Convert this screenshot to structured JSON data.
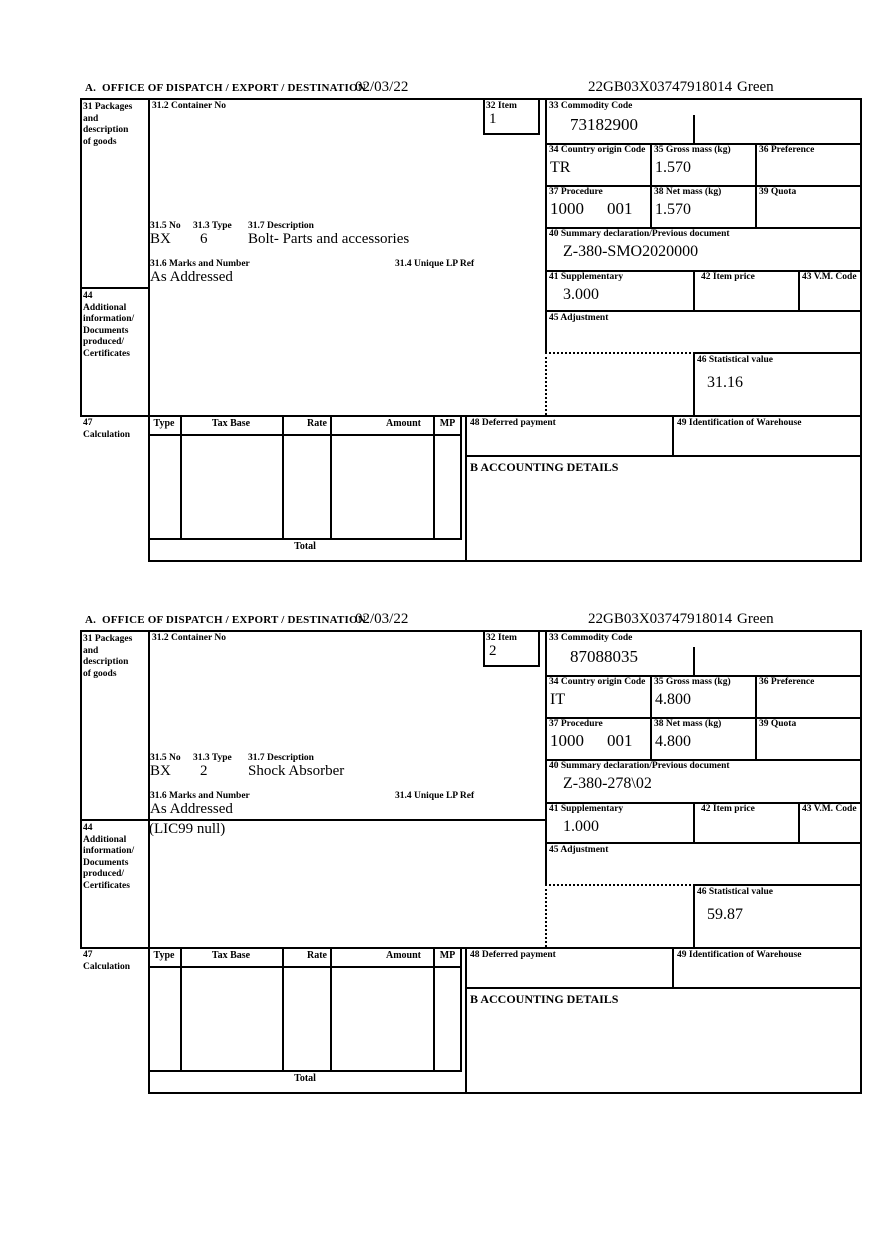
{
  "header": {
    "date": "02/03/22",
    "reference": "22GB03X03747918014",
    "routing": "Green"
  },
  "labels": {
    "section_a": "A.  OFFICE OF DISPATCH / EXPORT / DESTINATION",
    "box31": "31 Packages\nand\ndescription\nof goods",
    "box31_2": "31.2 Container No",
    "box32": "32 Item",
    "box33": "33 Commodity Code",
    "box34": "34 Country origin Code",
    "box35": "35 Gross mass (kg)",
    "box36": "36 Preference",
    "box37": "37 Procedure",
    "box38": "38 Net mass (kg)",
    "box39": "39 Quota",
    "box40": "40 Summary declaration/Previous document",
    "box41": "41 Supplementary",
    "box42": "42 Item price",
    "box43": "43 V.M. Code",
    "box44": "44\nAdditional\ninformation/\nDocuments\nproduced/\nCertificates",
    "box45": "45 Adjustment",
    "box46": "46 Statistical value",
    "box47": "47\nCalculation",
    "box48": "48 Deferred payment",
    "box49": "49 Identification of Warehouse",
    "accounting": "B ACCOUNTING DETAILS",
    "box31_5": "31.5 No",
    "box31_3": "31.3 Type",
    "box31_7": "31.7 Description",
    "box31_6": "31.6 Marks and Number",
    "box31_4": "31.4 Unique LP Ref",
    "calc_columns": [
      "Type",
      "Tax Base",
      "Rate",
      "Amount",
      "MP"
    ],
    "total": "Total"
  },
  "items": [
    {
      "item_no": "1",
      "commodity_code": "73182900",
      "country_origin_code": "TR",
      "gross_mass_kg": "1.570",
      "procedure": "1000",
      "procedure_extension": "001",
      "net_mass_kg": "1.570",
      "summary_declaration": "Z-380-SMO2020000",
      "supplementary_units": "3.000",
      "statistical_value": "31.16",
      "packages_no": "BX",
      "packages_type": "6",
      "goods_description": "Bolt- Parts and accessories",
      "marks_and_number": "As Addressed",
      "additional_information": ""
    },
    {
      "item_no": "2",
      "commodity_code": "87088035",
      "country_origin_code": "IT",
      "gross_mass_kg": "4.800",
      "procedure": "1000",
      "procedure_extension": "001",
      "net_mass_kg": "4.800",
      "summary_declaration": "Z-380-278\\02",
      "supplementary_units": "1.000",
      "statistical_value": "59.87",
      "packages_no": "BX",
      "packages_type": "2",
      "goods_description": "Shock Absorber",
      "marks_and_number": "As Addressed",
      "additional_information": "(LIC99 null)"
    }
  ]
}
